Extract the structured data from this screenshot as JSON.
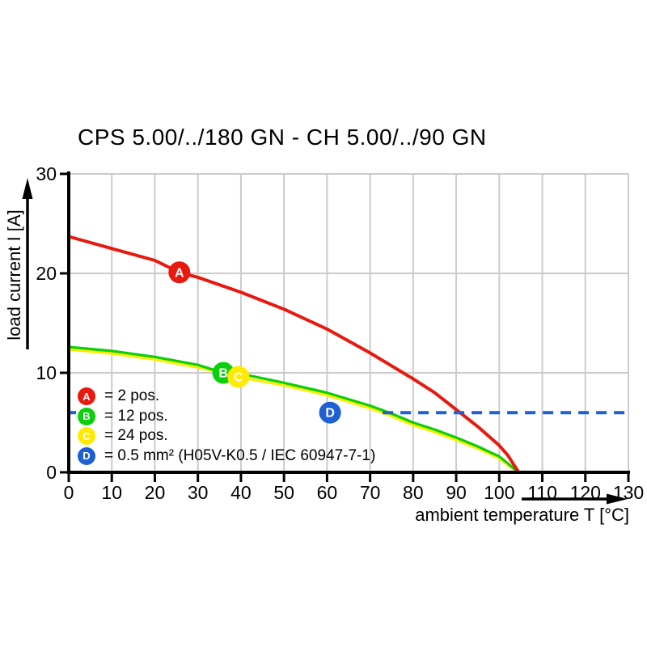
{
  "title": "CPS 5.00/../180 GN - CH 5.00/../90 GN",
  "axes": {
    "x": {
      "label": "ambient temperature T [°C]",
      "min": 0,
      "max": 130,
      "ticks": [
        0,
        10,
        20,
        30,
        40,
        50,
        60,
        70,
        80,
        90,
        100,
        110,
        120,
        130
      ]
    },
    "y": {
      "label": "load current I [A]",
      "min": 0,
      "max": 30,
      "ticks": [
        0,
        10,
        20,
        30
      ]
    }
  },
  "colors": {
    "red": "#e8190f",
    "green": "#0ccf0c",
    "yellow": "#ffeb00",
    "blue": "#1d60d1",
    "grid": "#cbcbcb",
    "axis": "#000000",
    "marker_letter": "#ffffff"
  },
  "legend": [
    {
      "id": "A",
      "color": "#e8190f",
      "label": "= 2 pos."
    },
    {
      "id": "B",
      "color": "#0ccf0c",
      "label": "= 12 pos."
    },
    {
      "id": "C",
      "color": "#ffeb00",
      "label": "= 24 pos."
    },
    {
      "id": "D",
      "color": "#1d60d1",
      "label": "= 0.5 mm² (H05V-K0.5 / IEC 60947-7-1)"
    }
  ],
  "chart_data": {
    "type": "line",
    "title": "CPS 5.00/../180 GN - CH 5.00/../90 GN",
    "xlabel": "ambient temperature T [°C]",
    "ylabel": "load current I [A]",
    "xlim": [
      0,
      130
    ],
    "ylim": [
      0,
      30
    ],
    "grid": true,
    "legend_position": "lower-left",
    "series": [
      {
        "name": "C = 24 pos.",
        "slug": "curve-c-24pos",
        "color": "#ffeb00",
        "style": "solid",
        "width": 3.2,
        "points": [
          [
            0,
            12.35
          ],
          [
            10,
            11.95
          ],
          [
            20,
            11.35
          ],
          [
            30,
            10.55
          ],
          [
            39.4,
            9.6
          ],
          [
            50,
            8.75
          ],
          [
            60,
            7.75
          ],
          [
            70,
            6.45
          ],
          [
            75,
            5.65
          ],
          [
            80,
            4.75
          ],
          [
            85,
            4.05
          ],
          [
            90,
            3.25
          ],
          [
            95,
            2.4
          ],
          [
            100,
            1.4
          ],
          [
            104.3,
            0
          ]
        ]
      },
      {
        "name": "B = 12 pos.",
        "slug": "curve-b-12pos",
        "color": "#0ccf0c",
        "style": "solid",
        "width": 3.2,
        "points": [
          [
            0,
            12.6
          ],
          [
            10,
            12.2
          ],
          [
            20,
            11.6
          ],
          [
            30,
            10.8
          ],
          [
            35.9,
            10.0
          ],
          [
            40,
            9.9
          ],
          [
            50,
            9.0
          ],
          [
            60,
            8.0
          ],
          [
            70,
            6.7
          ],
          [
            75,
            5.9
          ],
          [
            80,
            5.0
          ],
          [
            85,
            4.3
          ],
          [
            90,
            3.5
          ],
          [
            95,
            2.6
          ],
          [
            100,
            1.6
          ],
          [
            104.5,
            0
          ]
        ]
      },
      {
        "name": "A = 2 pos.",
        "slug": "curve-a-2pos",
        "color": "#e8190f",
        "style": "solid",
        "width": 4,
        "points": [
          [
            0,
            23.7
          ],
          [
            10,
            22.5
          ],
          [
            20,
            21.3
          ],
          [
            25.7,
            20.1
          ],
          [
            30,
            19.6
          ],
          [
            40,
            18.1
          ],
          [
            50,
            16.4
          ],
          [
            60,
            14.4
          ],
          [
            70,
            12.0
          ],
          [
            80,
            9.4
          ],
          [
            85,
            8.0
          ],
          [
            90,
            6.3
          ],
          [
            95,
            4.6
          ],
          [
            100,
            2.7
          ],
          [
            102,
            1.7
          ],
          [
            104.5,
            0
          ]
        ]
      },
      {
        "name": "D = 0.5 mm² (H05V-K0.5 / IEC 60947-7-1)",
        "slug": "limit-line-6a",
        "color": "#1d60d1",
        "style": "dashed",
        "width": 4,
        "points": [
          [
            72.9,
            6
          ],
          [
            130,
            6
          ]
        ],
        "stub_points": [
          [
            0,
            6
          ],
          [
            1.7,
            6
          ]
        ]
      }
    ],
    "markers": [
      {
        "id": "A",
        "x": 25.7,
        "y": 20.1,
        "color": "#e8190f"
      },
      {
        "id": "B",
        "x": 35.9,
        "y": 10.0,
        "color": "#0ccf0c"
      },
      {
        "id": "C",
        "x": 39.4,
        "y": 9.6,
        "color": "#ffeb00"
      },
      {
        "id": "D",
        "x": 60.7,
        "y": 6.0,
        "color": "#1d60d1"
      }
    ]
  }
}
